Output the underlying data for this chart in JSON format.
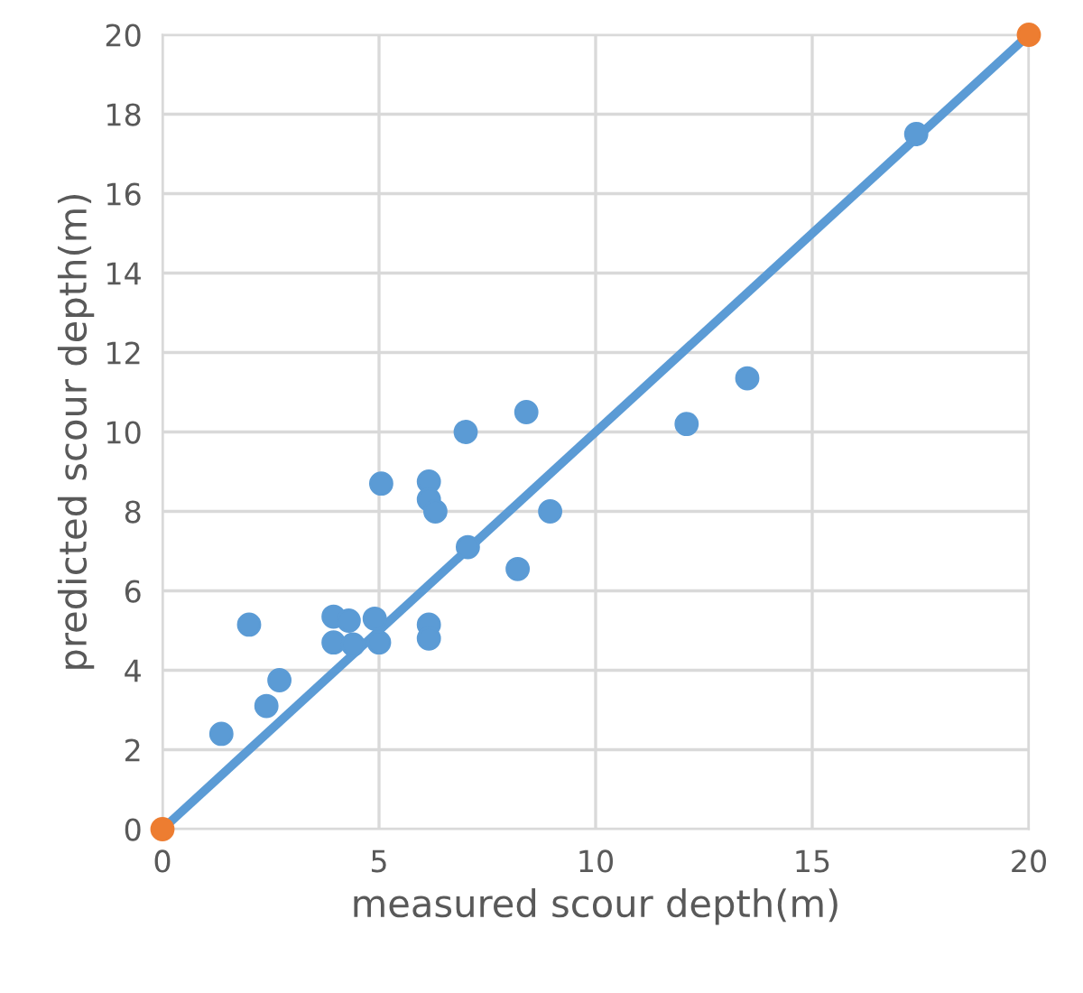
{
  "chart_data": {
    "type": "scatter",
    "xlabel": "measured scour depth(m)",
    "ylabel": "predicted scour depth(m)",
    "xlim": [
      0,
      20
    ],
    "ylim": [
      0,
      20
    ],
    "xticks": [
      0,
      5,
      10,
      15,
      20
    ],
    "yticks": [
      0,
      2,
      4,
      6,
      8,
      10,
      12,
      14,
      16,
      18,
      20
    ],
    "grid": true,
    "legend": false,
    "series": [
      {
        "color": "#5b9bd5",
        "marker": "circle",
        "x": [
          1.36,
          2.0,
          2.4,
          2.7,
          3.95,
          3.95,
          4.3,
          4.4,
          4.9,
          5.0,
          5.05,
          6.15,
          6.15,
          6.3,
          6.15,
          6.15,
          7.0,
          7.05,
          8.2,
          8.4,
          8.95,
          12.1,
          13.5,
          17.4
        ],
        "values": [
          2.4,
          5.15,
          3.1,
          3.75,
          5.35,
          4.7,
          5.25,
          4.65,
          5.3,
          4.7,
          8.7,
          8.75,
          8.3,
          8.0,
          5.15,
          4.8,
          10.0,
          7.1,
          6.55,
          10.5,
          8.0,
          10.2,
          11.35,
          17.5
        ]
      },
      {
        "type": "line",
        "color": "#5b9bd5",
        "x": [
          0,
          20
        ],
        "values": [
          0,
          20
        ]
      },
      {
        "type": "scatter",
        "color": "#ed7d31",
        "marker": "circle",
        "x": [
          0,
          20
        ],
        "values": [
          0,
          20
        ]
      }
    ]
  }
}
